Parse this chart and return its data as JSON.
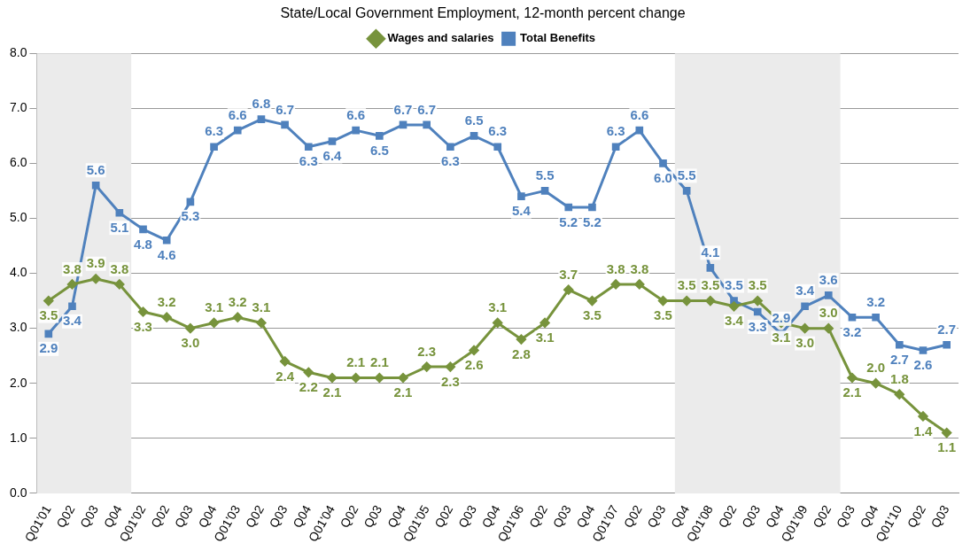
{
  "chart_data": {
    "type": "line",
    "title": "State/Local Government Employment, 12-month percent change",
    "categories": [
      "Q01'01",
      "Q02",
      "Q03",
      "Q04",
      "Q01'02",
      "Q02",
      "Q03",
      "Q04",
      "Q01'03",
      "Q02",
      "Q03",
      "Q04",
      "Q01'04",
      "Q02",
      "Q03",
      "Q04",
      "Q01'05",
      "Q02",
      "Q03",
      "Q04",
      "Q01'06",
      "Q02",
      "Q03",
      "Q04",
      "Q01'07",
      "Q02",
      "Q03",
      "Q04",
      "Q01'08",
      "Q02",
      "Q03",
      "Q04",
      "Q01'09",
      "Q02",
      "Q03",
      "Q04",
      "Q01'10",
      "Q02",
      "Q03"
    ],
    "series": [
      {
        "name": "Wages and salaries",
        "color": "#77933c",
        "marker": "diamond",
        "values": [
          3.5,
          3.8,
          3.9,
          3.8,
          3.3,
          3.2,
          3.0,
          3.1,
          3.2,
          3.1,
          2.4,
          2.2,
          2.1,
          2.1,
          2.1,
          2.1,
          2.3,
          2.3,
          2.6,
          3.1,
          2.8,
          3.1,
          3.7,
          3.5,
          3.8,
          3.8,
          3.5,
          3.5,
          3.5,
          3.4,
          3.5,
          3.1,
          3.0,
          3.0,
          2.1,
          2.0,
          1.8,
          1.4,
          1.1
        ],
        "value_labels": [
          "3.5",
          "3.8",
          "3.9",
          "3.8",
          "3.3",
          "3.2",
          "3.0",
          "3.1",
          "3.2",
          "3.1",
          "2.4",
          "2.2",
          "2.1",
          "2.1",
          "2.1",
          "2.1",
          "2.3",
          "2.3",
          "2.6",
          "3.1",
          "2.8",
          "3.1",
          "3.7",
          "3.5",
          "3.8",
          "3.8",
          "3.5",
          "3.5",
          "3.5",
          "3.4",
          "3.5",
          "3.1",
          "3.0",
          "3.0",
          "2.1",
          "2.0",
          "1.8",
          "1.4",
          "1.1"
        ]
      },
      {
        "name": "Total Benefits",
        "color": "#4f81bd",
        "marker": "square",
        "values": [
          2.9,
          3.4,
          5.6,
          5.1,
          4.8,
          4.6,
          5.3,
          6.3,
          6.6,
          6.8,
          6.7,
          6.3,
          6.4,
          6.6,
          6.5,
          6.7,
          6.7,
          6.3,
          6.5,
          6.3,
          5.4,
          5.5,
          5.2,
          5.2,
          6.3,
          6.6,
          6.0,
          5.5,
          4.1,
          3.5,
          3.3,
          2.9,
          3.4,
          3.6,
          3.2,
          3.2,
          2.7,
          2.6,
          2.7
        ],
        "value_labels": [
          "2.9",
          "3.4",
          "5.6",
          "5.1",
          "4.8",
          "4.6",
          "5.3",
          "6.3",
          "6.6",
          "6.8",
          "6.7",
          "6.3",
          "6.4",
          "6.6",
          "6.5",
          "6.7",
          "6.7",
          "6.3",
          "6.5",
          "6.3",
          "5.4",
          "5.5",
          "5.2",
          "5.2",
          "6.3",
          "6.6",
          "6.0",
          "5.5",
          "4.1",
          "3.5",
          "3.3",
          "2.9",
          "3.4",
          "3.6",
          "3.2",
          "3.2",
          "2.7",
          "2.6",
          "2.7"
        ]
      }
    ],
    "ylim": [
      0,
      8
    ],
    "yticks": [
      {
        "value": 0,
        "label": "0.0"
      },
      {
        "value": 1,
        "label": "1.0"
      },
      {
        "value": 2,
        "label": "2.0"
      },
      {
        "value": 3,
        "label": "3.0"
      },
      {
        "value": 4,
        "label": "4.0"
      },
      {
        "value": 5,
        "label": "5.0"
      },
      {
        "value": 6,
        "label": "6.0"
      },
      {
        "value": 7,
        "label": "7.0"
      },
      {
        "value": 8,
        "label": "8.0"
      }
    ],
    "grid": "y",
    "legend": "top",
    "line_style": "solid"
  }
}
